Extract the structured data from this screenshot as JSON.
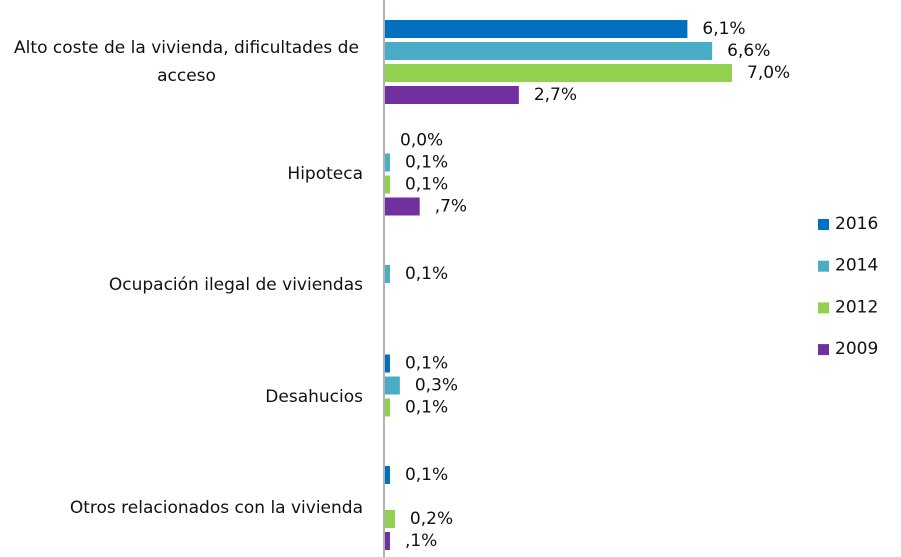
{
  "chart_data": {
    "type": "hbar",
    "categories": [
      "Alto coste de la vivienda, dificultades de acceso",
      "Hipoteca",
      "Ocupación ilegal de viviendas",
      "Desahucios",
      "Otros relacionados con la vivienda"
    ],
    "series": [
      {
        "name": "2016",
        "color": "#0070c0",
        "values": [
          6.1,
          0.0,
          null,
          0.1,
          0.1
        ],
        "value_labels": [
          "6,1%",
          "0,0%",
          null,
          "0,1%",
          "0,1%"
        ]
      },
      {
        "name": "2014",
        "color": "#4bacc6",
        "values": [
          6.6,
          0.1,
          0.1,
          0.3,
          null
        ],
        "value_labels": [
          "6,6%",
          "0,1%",
          "0,1%",
          "0,3%",
          null
        ]
      },
      {
        "name": "2012",
        "color": "#92d050",
        "values": [
          7.0,
          0.1,
          null,
          0.1,
          0.2
        ],
        "value_labels": [
          "7,0%",
          "0,1%",
          null,
          "0,1%",
          "0,2%"
        ]
      },
      {
        "name": "2009",
        "color": "#7030a0",
        "values": [
          2.7,
          0.7,
          null,
          null,
          0.1
        ],
        "value_labels": [
          "2,7%",
          ",7%",
          null,
          null,
          ",1%"
        ]
      }
    ],
    "xlim": [
      0,
      7
    ],
    "legend": "right"
  }
}
